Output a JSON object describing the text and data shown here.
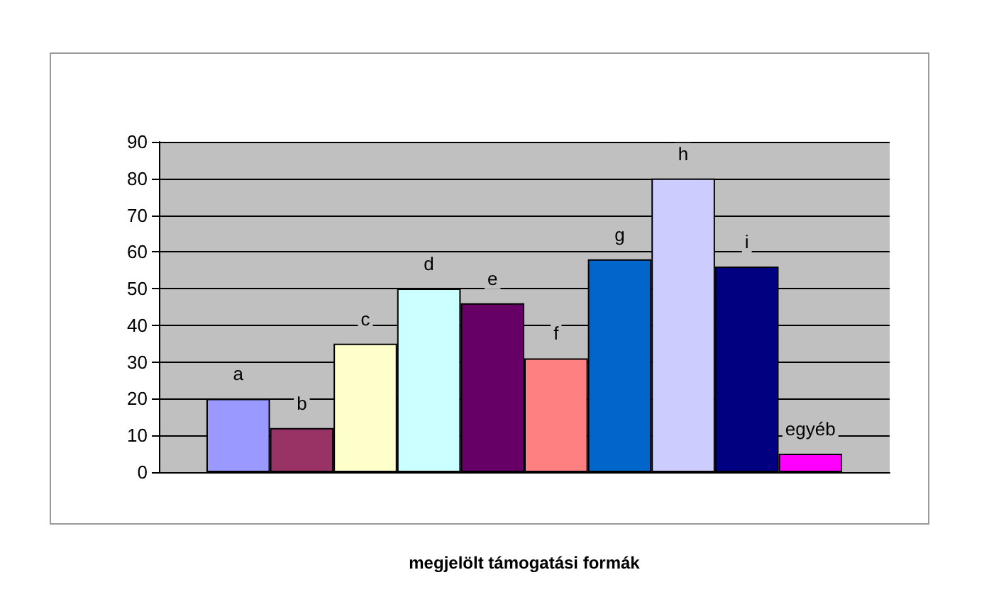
{
  "chart_data": {
    "type": "bar",
    "xlabel": "megjelölt támogatási formák",
    "categories": [
      null
    ],
    "series": [
      {
        "name": "a",
        "color": "#9999ff",
        "values": [
          20
        ]
      },
      {
        "name": "b",
        "color": "#993366",
        "values": [
          12
        ]
      },
      {
        "name": "c",
        "color": "#ffffcc",
        "values": [
          35
        ]
      },
      {
        "name": "d",
        "color": "#ccffff",
        "values": [
          50
        ]
      },
      {
        "name": "e",
        "color": "#660066",
        "values": [
          46
        ]
      },
      {
        "name": "f",
        "color": "#ff8080",
        "values": [
          31
        ]
      },
      {
        "name": "g",
        "color": "#0066cc",
        "values": [
          58
        ]
      },
      {
        "name": "h",
        "color": "#ccccff",
        "values": [
          80
        ]
      },
      {
        "name": "i",
        "color": "#000080",
        "values": [
          56
        ]
      },
      {
        "name": "egyéb",
        "color": "#ff00ff",
        "values": [
          5
        ]
      }
    ],
    "ylim": [
      0,
      90
    ],
    "yticks": [
      0,
      10,
      20,
      30,
      40,
      50,
      60,
      70,
      80,
      90
    ],
    "grid": "y",
    "legend": false
  }
}
